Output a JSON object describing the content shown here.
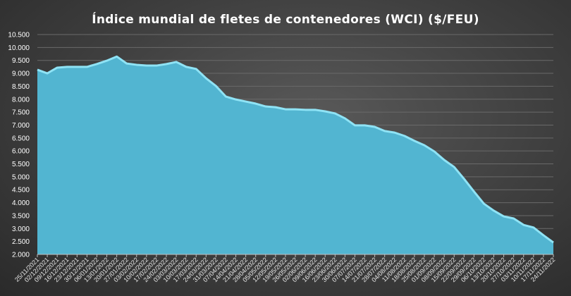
{
  "chart_data": {
    "type": "area",
    "title": "Índice mundial de fletes de contenedores (WCI) ($/FEU)",
    "xlabel": "",
    "ylabel": "",
    "ylim": [
      2000,
      10500
    ],
    "yticks": [
      "2.000",
      "2.500",
      "3.000",
      "3.500",
      "4.000",
      "4.500",
      "5.000",
      "5.500",
      "6.000",
      "6.500",
      "7.000",
      "7.500",
      "8.000",
      "8.500",
      "9.000",
      "9.500",
      "10.000",
      "10.500"
    ],
    "grid": true,
    "legend": "none",
    "colors": {
      "fill": "#52b5d1",
      "edge": "#8fe3f5",
      "grid": "#6a6a6a"
    },
    "x": [
      "25/11/2021",
      "02/12/2021",
      "09/12/2021",
      "16/12/2021",
      "23/12/2021",
      "30/12/2021",
      "06/01/2022",
      "13/01/2022",
      "20/01/2022",
      "27/01/2022",
      "03/02/2022",
      "10/02/2022",
      "17/02/2022",
      "24/02/2022",
      "03/03/2022",
      "10/03/2022",
      "17/03/2022",
      "24/03/2022",
      "31/03/2022",
      "07/04/2022",
      "14/04/2022",
      "21/04/2022",
      "28/04/2022",
      "05/05/2022",
      "12/05/2022",
      "19/05/2022",
      "26/05/2022",
      "02/06/2022",
      "09/06/2022",
      "16/06/2022",
      "23/06/2022",
      "30/06/2022",
      "07/07/2022",
      "14/07/2022",
      "21/07/2022",
      "28/07/2022",
      "04/08/2022",
      "11/08/2022",
      "18/08/2022",
      "25/08/2022",
      "01/09/2022",
      "08/09/2022",
      "15/09/2022",
      "22/09/2022",
      "29/09/2022",
      "06/10/2022",
      "13/10/2022",
      "20/10/2022",
      "27/10/2022",
      "03/11/2022",
      "10/11/2022",
      "17/11/2022",
      "24/11/2022"
    ],
    "values": [
      9140,
      9000,
      9220,
      9250,
      9250,
      9250,
      9360,
      9490,
      9650,
      9380,
      9330,
      9300,
      9300,
      9360,
      9440,
      9250,
      9170,
      8810,
      8510,
      8100,
      7990,
      7910,
      7830,
      7720,
      7690,
      7610,
      7610,
      7590,
      7590,
      7530,
      7450,
      7260,
      6990,
      6990,
      6930,
      6770,
      6710,
      6580,
      6390,
      6220,
      5980,
      5650,
      5380,
      4920,
      4430,
      3960,
      3690,
      3470,
      3390,
      3140,
      3040,
      2740,
      2460
    ]
  }
}
